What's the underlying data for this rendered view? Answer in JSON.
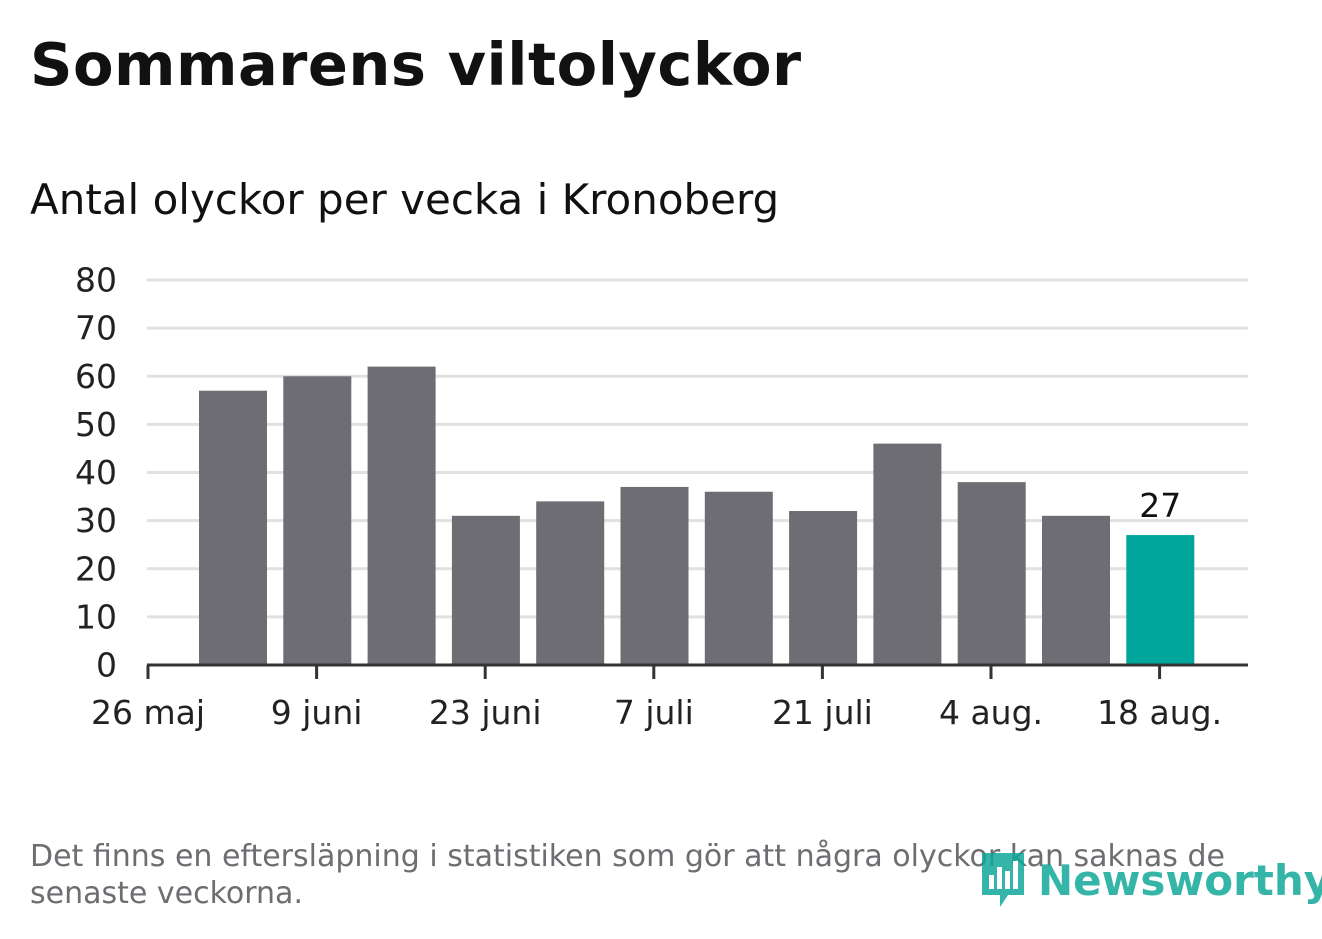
{
  "title": "Sommarens viltolyckor",
  "subtitle": "Antal olyckor per vecka i Kronoberg",
  "footnote": "Det finns en eftersläpning i statistiken som gör att några olyckor kan saknas de senaste veckorna.",
  "logo": {
    "text": "Newsworthy",
    "icon": "newsworthy-logo-icon"
  },
  "colors": {
    "bar": "#6e6d74",
    "highlight": "#00a59b",
    "grid": "#e1e1e1",
    "axis": "#333333"
  },
  "chart_data": {
    "type": "bar",
    "title": "Sommarens viltolyckor",
    "subtitle": "Antal olyckor per vecka i Kronoberg",
    "xlabel": "",
    "ylabel": "",
    "ylim": [
      0,
      80
    ],
    "yticks": [
      0,
      10,
      20,
      30,
      40,
      50,
      60,
      70,
      80
    ],
    "x_tick_labels": [
      "26 maj",
      "9 juni",
      "23 juni",
      "7 juli",
      "21 juli",
      "4 aug.",
      "18 aug."
    ],
    "grid": true,
    "values": [
      57,
      60,
      62,
      31,
      34,
      37,
      36,
      32,
      46,
      38,
      31,
      27
    ],
    "highlight": {
      "index": 11,
      "label": "27"
    }
  }
}
